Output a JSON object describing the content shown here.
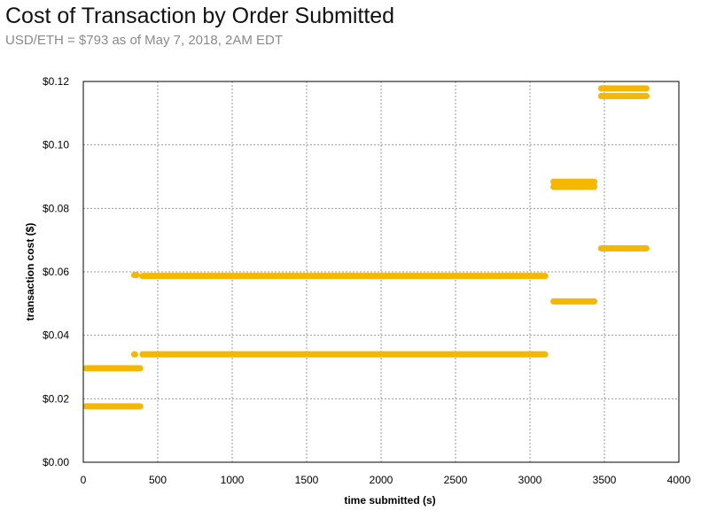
{
  "chart_data": {
    "type": "scatter",
    "title": "Cost of Transaction by Order Submitted",
    "subtitle": "USD/ETH = $793 as of May 7, 2018, 2AM EDT",
    "xlabel": "time submitted  (s)",
    "ylabel": "transaction cost  ($)",
    "xlim": [
      0,
      4000
    ],
    "ylim": [
      0,
      0.12
    ],
    "x_ticks": [
      0,
      500,
      1000,
      1500,
      2000,
      2500,
      3000,
      3500,
      4000
    ],
    "x_tick_labels": [
      "0",
      "500",
      "1000",
      "1500",
      "2000",
      "2500",
      "3000",
      "3500",
      "4000"
    ],
    "y_ticks": [
      0,
      0.02,
      0.04,
      0.06,
      0.08,
      0.1,
      0.12
    ],
    "y_tick_labels": [
      "$0.00",
      "$0.02",
      "$0.04",
      "$0.06",
      "$0.08",
      "$0.10",
      "$0.12"
    ],
    "grid": true,
    "legend": "none",
    "color": "#F5B800",
    "series": [
      {
        "values": [
          {
            "x_start": 0,
            "x_end": 400,
            "y": 0.0176
          },
          {
            "x_start": 0,
            "x_end": 400,
            "y": 0.0296
          },
          {
            "x_start": 330,
            "x_end": 360,
            "y": 0.034
          },
          {
            "x_start": 380,
            "x_end": 3120,
            "y": 0.034
          },
          {
            "x_start": 340,
            "x_end": 360,
            "y": 0.059
          },
          {
            "x_start": 380,
            "x_end": 3120,
            "y": 0.0587
          },
          {
            "x_start": 3140,
            "x_end": 3450,
            "y": 0.0507
          },
          {
            "x_start": 3140,
            "x_end": 3450,
            "y": 0.0868
          },
          {
            "x_start": 3140,
            "x_end": 3450,
            "y": 0.0884
          },
          {
            "x_start": 3460,
            "x_end": 3800,
            "y": 0.0674
          },
          {
            "x_start": 3460,
            "x_end": 3800,
            "y": 0.1154
          },
          {
            "x_start": 3460,
            "x_end": 3800,
            "y": 0.1178
          }
        ]
      }
    ]
  }
}
